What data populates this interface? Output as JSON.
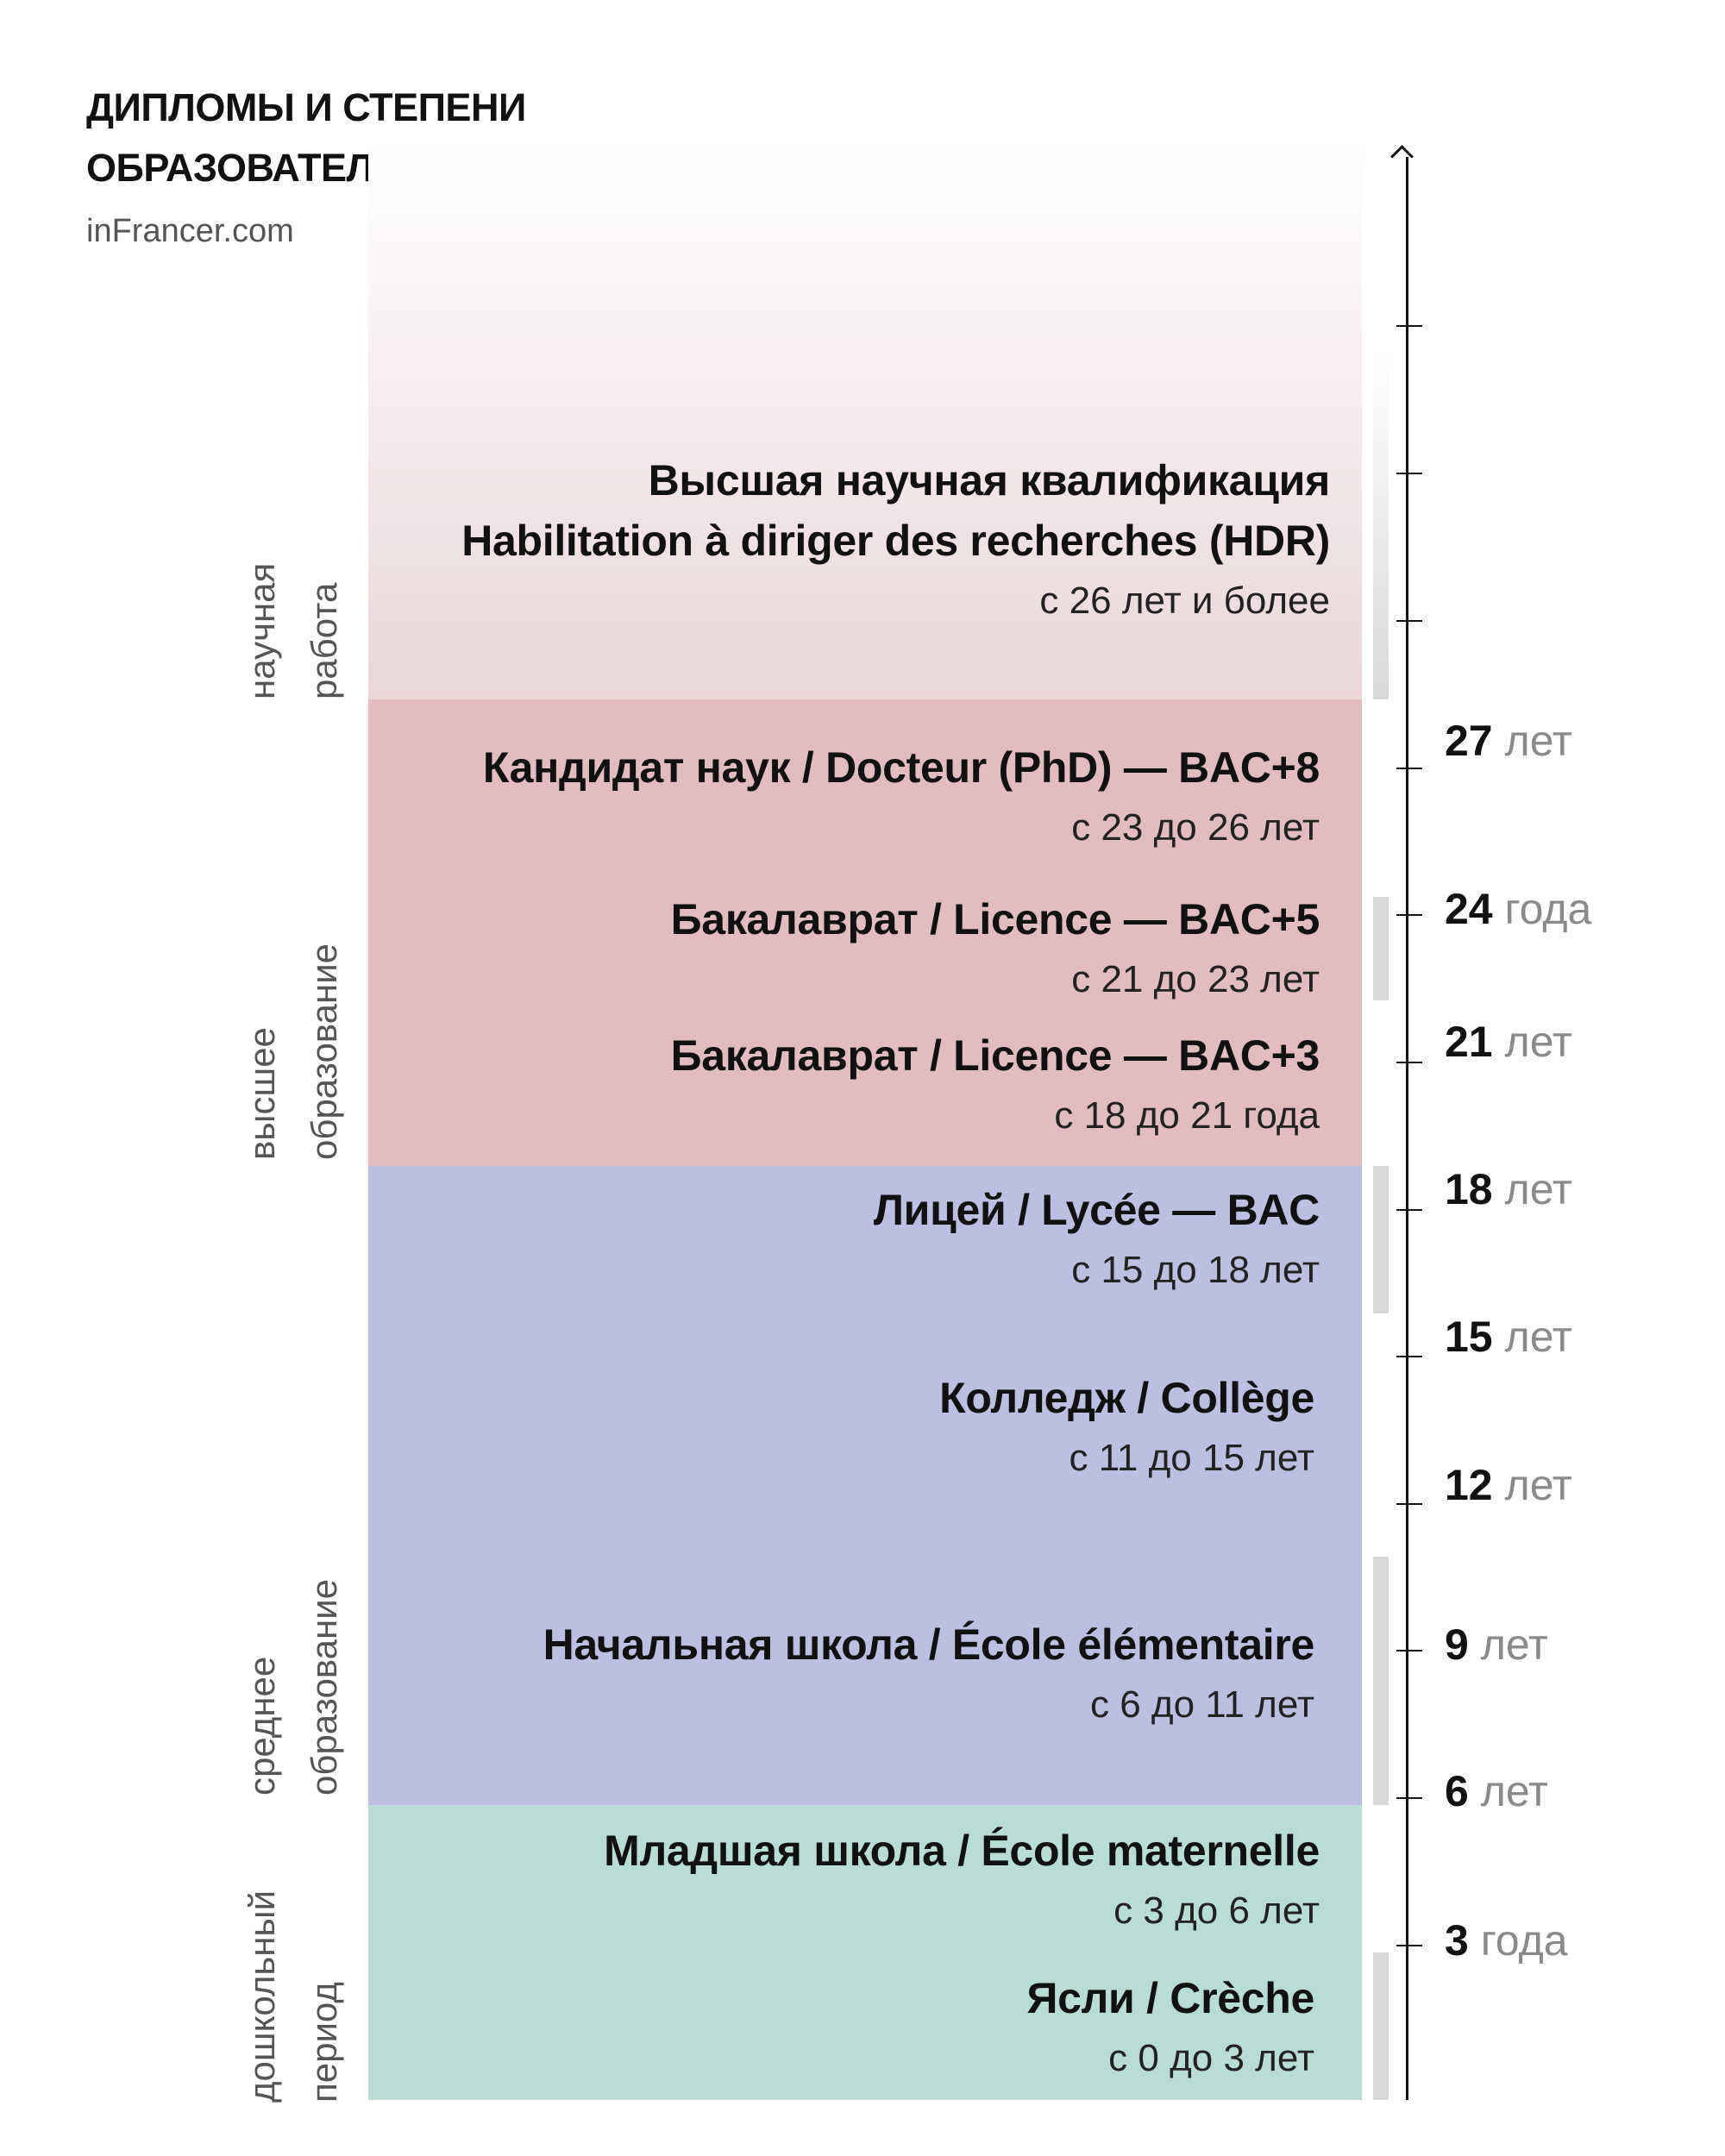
{
  "header": {
    "title_line1": "ДИПЛОМЫ И СТЕПЕНИ",
    "title_line2": "ОБРАЗОВАТЕЛЬНОЙ СИСТЕМЫ ФРАНЦИИ",
    "site": "inFrancer.com"
  },
  "colors": {
    "research": "#ead6d9",
    "higher": "#e3bcc1",
    "secondary": "#bdbfe2",
    "preschool": "#b7ddd5",
    "bar": "#d9d9d9"
  },
  "sections": [
    {
      "line1": "научная",
      "line2": "работа"
    },
    {
      "line1": "высшее",
      "line2": "образование"
    },
    {
      "line1": "среднее",
      "line2": "образование"
    },
    {
      "line1": "дошкольный",
      "line2": "период"
    }
  ],
  "items": [
    {
      "title": "Высшая научная квалификация",
      "title2": "Habilitation à diriger des recherches (HDR)",
      "ages": "с 26 лет и более"
    },
    {
      "title": "Кандидат наук / Docteur (PhD) — BAC+8",
      "ages": "с 23 до 26 лет"
    },
    {
      "title": "Бакалаврат / Licence — BAC+5",
      "ages": "с 21 до 23 лет"
    },
    {
      "title": "Бакалаврат / Licence — BAC+3",
      "ages": "с 18 до 21 года"
    },
    {
      "title": "Лицей / Lycée — BAC",
      "ages": "с 15 до 18 лет"
    },
    {
      "title": "Колледж / Collège",
      "ages": "с 11 до 15 лет"
    },
    {
      "title": "Начальная школа / École élémentaire",
      "ages": "с 6 до 11 лет"
    },
    {
      "title": "Младшая школа / École maternelle",
      "ages": "с 3 до 6 лет"
    },
    {
      "title": "Ясли / Crèche",
      "ages": "с 0 до 3 лет"
    }
  ],
  "axis": [
    {
      "num": "27",
      "unit": "лет"
    },
    {
      "num": "24",
      "unit": "года"
    },
    {
      "num": "21",
      "unit": "лет"
    },
    {
      "num": "18",
      "unit": "лет"
    },
    {
      "num": "15",
      "unit": "лет"
    },
    {
      "num": "12",
      "unit": "лет"
    },
    {
      "num": "9",
      "unit": "лет"
    },
    {
      "num": "6",
      "unit": "лет"
    },
    {
      "num": "3",
      "unit": "года"
    }
  ]
}
